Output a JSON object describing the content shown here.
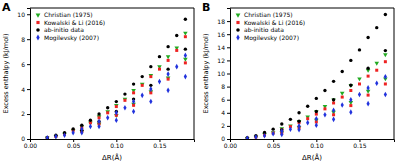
{
  "chart_data": [
    {
      "type": "scatter",
      "title": "A",
      "x_label": "ΔR(Å)",
      "y_label": "Excess enthalpy (kJ/mol)",
      "xlim": [
        0,
        0.19
      ],
      "ylim": [
        0,
        10.5
      ],
      "xticks": [
        {
          "value": 0,
          "label": "0.00"
        },
        0.05,
        {
          "value": 0.1,
          "label": "0.10"
        },
        0.15
      ],
      "yticks": [
        0,
        2,
        4,
        6,
        8,
        10
      ],
      "legend": "upper left",
      "series": [
        {
          "name": "Christian (1975)",
          "color": "#22aa22",
          "marker": "triangle-down",
          "x": [
            0.02,
            0.03,
            0.04,
            0.05,
            0.06,
            0.06,
            0.07,
            0.08,
            0.08,
            0.09,
            0.1,
            0.1,
            0.11,
            0.12,
            0.12,
            0.13,
            0.14,
            0.14,
            0.15,
            0.16,
            0.16,
            0.17,
            0.18,
            0.18
          ],
          "values": [
            0.1,
            0.2,
            0.4,
            0.7,
            1.0,
            0.6,
            1.3,
            1.8,
            1.2,
            2.2,
            2.7,
            1.9,
            3.2,
            3.9,
            2.8,
            4.4,
            5.1,
            3.8,
            5.8,
            6.6,
            4.9,
            7.3,
            8.5,
            6.4
          ]
        },
        {
          "name": "Kowalski & Li (2016)",
          "color": "#ee2222",
          "marker": "square",
          "x": [
            0.02,
            0.03,
            0.04,
            0.05,
            0.06,
            0.06,
            0.07,
            0.08,
            0.08,
            0.09,
            0.1,
            0.1,
            0.11,
            0.12,
            0.12,
            0.13,
            0.14,
            0.14,
            0.15,
            0.16,
            0.16,
            0.17,
            0.18,
            0.18
          ],
          "values": [
            0.1,
            0.2,
            0.4,
            0.7,
            0.9,
            0.6,
            1.3,
            1.7,
            1.2,
            2.1,
            2.6,
            1.9,
            3.1,
            3.7,
            2.7,
            4.3,
            5.0,
            3.7,
            5.6,
            6.3,
            4.8,
            7.1,
            8.2,
            6.1
          ]
        },
        {
          "name": "ab-initio data",
          "color": "#000000",
          "marker": "circle",
          "x": [
            0.02,
            0.03,
            0.04,
            0.05,
            0.06,
            0.06,
            0.07,
            0.08,
            0.08,
            0.09,
            0.1,
            0.1,
            0.11,
            0.12,
            0.12,
            0.13,
            0.14,
            0.14,
            0.15,
            0.16,
            0.16,
            0.17,
            0.18,
            0.18
          ],
          "values": [
            0.1,
            0.3,
            0.5,
            0.8,
            1.1,
            0.7,
            1.5,
            2.0,
            1.4,
            2.5,
            3.0,
            2.2,
            3.6,
            4.4,
            3.2,
            5.0,
            5.8,
            4.3,
            6.6,
            7.4,
            5.6,
            8.3,
            9.6,
            7.2
          ]
        },
        {
          "name": "Mogilevsky (2007)",
          "color": "#2233dd",
          "marker": "diamond",
          "x": [
            0.02,
            0.03,
            0.04,
            0.05,
            0.06,
            0.06,
            0.07,
            0.08,
            0.08,
            0.09,
            0.1,
            0.1,
            0.11,
            0.12,
            0.12,
            0.13,
            0.14,
            0.14,
            0.15,
            0.16,
            0.16,
            0.17,
            0.18,
            0.18
          ],
          "values": [
            0.1,
            0.2,
            0.3,
            0.5,
            0.8,
            0.5,
            1.0,
            1.4,
            1.0,
            1.7,
            2.1,
            1.5,
            2.5,
            3.0,
            2.2,
            3.5,
            4.0,
            3.0,
            4.6,
            5.2,
            3.9,
            5.8,
            6.7,
            5.0
          ]
        }
      ]
    },
    {
      "type": "scatter",
      "title": "B",
      "x_label": "ΔR(Å)",
      "y_label": "Excess enthalpy (kJ/mol)",
      "xlim": [
        0,
        0.19
      ],
      "ylim": [
        0,
        20
      ],
      "xticks": [
        {
          "value": 0,
          "label": "0.00"
        },
        0.05,
        {
          "value": 0.1,
          "label": "0.10"
        },
        0.15
      ],
      "yticks": [
        0,
        2,
        4,
        6,
        8,
        10,
        12,
        14,
        16,
        18
      ],
      "legend": "upper left",
      "series": [
        {
          "name": "Christian (1975)",
          "color": "#22aa22",
          "marker": "triangle-down",
          "x": [
            0.02,
            0.03,
            0.04,
            0.05,
            0.06,
            0.06,
            0.07,
            0.08,
            0.08,
            0.09,
            0.1,
            0.1,
            0.11,
            0.12,
            0.12,
            0.13,
            0.14,
            0.14,
            0.15,
            0.16,
            0.16,
            0.17,
            0.18,
            0.18
          ],
          "values": [
            0.1,
            0.3,
            0.7,
            1.0,
            1.6,
            1.0,
            2.0,
            2.7,
            1.8,
            3.4,
            4.2,
            2.9,
            5.0,
            6.0,
            4.1,
            7.0,
            8.2,
            5.6,
            9.2,
            10.5,
            7.3,
            11.6,
            12.9,
            9.2
          ]
        },
        {
          "name": "Kowalski & Li (2016)",
          "color": "#ee2222",
          "marker": "square",
          "x": [
            0.02,
            0.03,
            0.04,
            0.05,
            0.06,
            0.06,
            0.07,
            0.08,
            0.08,
            0.09,
            0.1,
            0.1,
            0.11,
            0.12,
            0.12,
            0.13,
            0.14,
            0.14,
            0.15,
            0.16,
            0.16,
            0.17,
            0.18,
            0.18
          ],
          "values": [
            0.1,
            0.3,
            0.6,
            0.9,
            1.4,
            0.9,
            1.9,
            2.5,
            1.7,
            3.1,
            3.8,
            2.6,
            4.6,
            5.5,
            3.7,
            6.4,
            7.4,
            5.1,
            8.4,
            9.6,
            6.7,
            10.5,
            11.8,
            8.4
          ]
        },
        {
          "name": "ab-initio data",
          "color": "#000000",
          "marker": "circle",
          "x": [
            0.02,
            0.03,
            0.04,
            0.05,
            0.06,
            0.06,
            0.07,
            0.08,
            0.08,
            0.09,
            0.1,
            0.1,
            0.11,
            0.12,
            0.12,
            0.13,
            0.14,
            0.14,
            0.15,
            0.16,
            0.16,
            0.17,
            0.18,
            0.18
          ],
          "values": [
            0.2,
            0.5,
            1.0,
            1.5,
            2.3,
            1.4,
            3.0,
            4.0,
            2.7,
            5.0,
            6.2,
            4.2,
            7.4,
            8.8,
            6.0,
            10.3,
            12.0,
            8.2,
            13.6,
            15.5,
            10.8,
            17.0,
            19.0,
            13.5
          ]
        },
        {
          "name": "Mogilevsky (2007)",
          "color": "#2233dd",
          "marker": "diamond",
          "x": [
            0.02,
            0.03,
            0.04,
            0.05,
            0.06,
            0.06,
            0.07,
            0.08,
            0.08,
            0.09,
            0.1,
            0.1,
            0.11,
            0.12,
            0.12,
            0.13,
            0.14,
            0.14,
            0.15,
            0.16,
            0.16,
            0.17,
            0.18,
            0.18
          ],
          "values": [
            0.1,
            0.3,
            0.5,
            0.8,
            1.2,
            0.7,
            1.5,
            2.0,
            1.4,
            2.5,
            3.1,
            2.1,
            3.7,
            4.4,
            3.0,
            5.2,
            6.0,
            4.1,
            6.8,
            7.8,
            5.4,
            8.5,
            9.5,
            6.8
          ]
        }
      ]
    }
  ]
}
